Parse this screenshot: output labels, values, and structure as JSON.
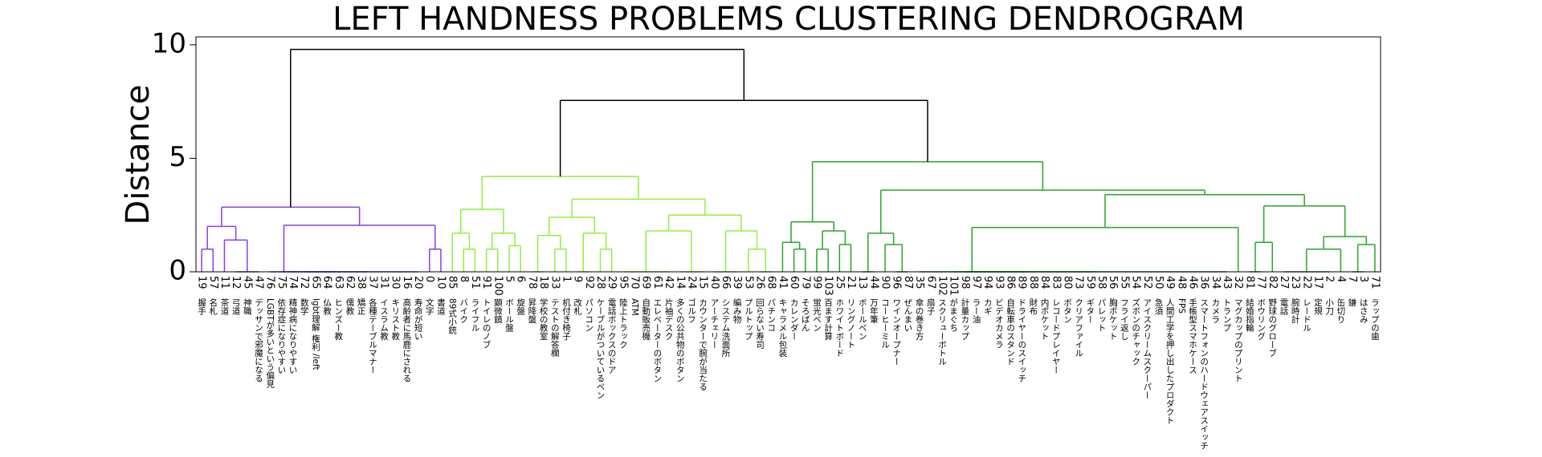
{
  "chart_data": {
    "type": "dendrogram",
    "title": "LEFT HANDNESS PROBLEMS CLUSTERING DENDROGRAM",
    "y_label": "Distance",
    "ylim": [
      0,
      10.35
    ],
    "yticks": [
      0,
      5,
      10
    ],
    "leaves": [
      {
        "id": 19,
        "label": "握手"
      },
      {
        "id": 57,
        "label": "名札"
      },
      {
        "id": 11,
        "label": "茶道"
      },
      {
        "id": 12,
        "label": "弓道"
      },
      {
        "id": 45,
        "label": "神職"
      },
      {
        "id": 47,
        "label": "デッサンで邪魔になる"
      },
      {
        "id": 76,
        "label": "LGBTが多いという偏見"
      },
      {
        "id": 75,
        "label": "依存症になりやすい"
      },
      {
        "id": 74,
        "label": "精神病になりやすい"
      },
      {
        "id": 72,
        "label": "数学"
      },
      {
        "id": 65,
        "label": "lgbt理解 権利 /left"
      },
      {
        "id": 64,
        "label": "仏教"
      },
      {
        "id": 63,
        "label": "ヒンズー教"
      },
      {
        "id": 62,
        "label": "儒教"
      },
      {
        "id": 38,
        "label": "矯正"
      },
      {
        "id": 37,
        "label": "各種テーブルマナー"
      },
      {
        "id": 31,
        "label": "イスラム教"
      },
      {
        "id": 30,
        "label": "キリスト教"
      },
      {
        "id": 16,
        "label": "高齢者に馬鹿にされる"
      },
      {
        "id": 20,
        "label": "寿命が短い"
      },
      {
        "id": 0,
        "label": "文字"
      },
      {
        "id": 10,
        "label": "書道"
      },
      {
        "id": 85,
        "label": "89式小銃"
      },
      {
        "id": 8,
        "label": "バイク"
      },
      {
        "id": 51,
        "label": "ライフル"
      },
      {
        "id": 91,
        "label": "トイレのノブ"
      },
      {
        "id": 100,
        "label": "顕微鏡"
      },
      {
        "id": 5,
        "label": "ボール盤"
      },
      {
        "id": 6,
        "label": "旋盤"
      },
      {
        "id": 78,
        "label": "昇降盤"
      },
      {
        "id": 18,
        "label": "学校の教室"
      },
      {
        "id": 33,
        "label": "テストの解答欄"
      },
      {
        "id": 1,
        "label": "机付き椅子"
      },
      {
        "id": 9,
        "label": "改札"
      },
      {
        "id": 92,
        "label": "パソコン"
      },
      {
        "id": 28,
        "label": "ケーブルがついているペン"
      },
      {
        "id": 29,
        "label": "電話ボックスのドア"
      },
      {
        "id": 95,
        "label": "陸上トラック"
      },
      {
        "id": 70,
        "label": "ATM"
      },
      {
        "id": 69,
        "label": "自動販売機"
      },
      {
        "id": 61,
        "label": "エレベーターのボタン"
      },
      {
        "id": 42,
        "label": "片袖デスク"
      },
      {
        "id": 14,
        "label": "多くの公共物のボタン"
      },
      {
        "id": 24,
        "label": "ゴルフ"
      },
      {
        "id": 15,
        "label": "カウンターで腕が当たる"
      },
      {
        "id": 40,
        "label": "アーチェリー"
      },
      {
        "id": 66,
        "label": "システム洗面所"
      },
      {
        "id": 39,
        "label": "編み物"
      },
      {
        "id": 53,
        "label": "プルトップ"
      },
      {
        "id": 26,
        "label": "回らない寿司"
      },
      {
        "id": 68,
        "label": "パチンコ"
      },
      {
        "id": 41,
        "label": "キャラメル包装"
      },
      {
        "id": 60,
        "label": "カレンダー"
      },
      {
        "id": 79,
        "label": "そろばん"
      },
      {
        "id": 99,
        "label": "蛍光ペン"
      },
      {
        "id": 103,
        "label": "百ます計算"
      },
      {
        "id": 25,
        "label": "ホワイトボード"
      },
      {
        "id": 21,
        "label": "リングノート"
      },
      {
        "id": 13,
        "label": "ボールペン"
      },
      {
        "id": 44,
        "label": "万年筆"
      },
      {
        "id": 90,
        "label": "コーヒーミル"
      },
      {
        "id": 96,
        "label": "ワインオープナー"
      },
      {
        "id": 87,
        "label": "ぜんまい"
      },
      {
        "id": 35,
        "label": "傘の巻き方"
      },
      {
        "id": 67,
        "label": "扇子"
      },
      {
        "id": 102,
        "label": "スクリューボトル"
      },
      {
        "id": 101,
        "label": "がまぐち"
      },
      {
        "id": 98,
        "label": "計量カップ"
      },
      {
        "id": 97,
        "label": "ラー油"
      },
      {
        "id": 94,
        "label": "カギ"
      },
      {
        "id": 93,
        "label": "ビデオカメラ"
      },
      {
        "id": 86,
        "label": "自転車のスタンド"
      },
      {
        "id": 89,
        "label": "ドライヤーのスイッチ"
      },
      {
        "id": 88,
        "label": "財布"
      },
      {
        "id": 84,
        "label": "内ポケット"
      },
      {
        "id": 83,
        "label": "レコードプレイヤー"
      },
      {
        "id": 80,
        "label": "ボタン"
      },
      {
        "id": 73,
        "label": "クリアファイル"
      },
      {
        "id": 59,
        "label": "ギター"
      },
      {
        "id": 58,
        "label": "パレット"
      },
      {
        "id": 56,
        "label": "胸ポケット"
      },
      {
        "id": 55,
        "label": "フライ返し"
      },
      {
        "id": 54,
        "label": "ズボンのチャック"
      },
      {
        "id": 52,
        "label": "アイスクリームスクーパー"
      },
      {
        "id": 50,
        "label": "急須"
      },
      {
        "id": 49,
        "label": "人間工学を押し出したプロダクト"
      },
      {
        "id": 48,
        "label": "FPS"
      },
      {
        "id": 46,
        "label": "手帳型スマホケース"
      },
      {
        "id": 36,
        "label": "スマートフォンのハードウェアスイッチ"
      },
      {
        "id": 34,
        "label": "カメラ"
      },
      {
        "id": 43,
        "label": "トランプ"
      },
      {
        "id": 32,
        "label": "マグカップのプリント"
      },
      {
        "id": 81,
        "label": "結婚指輪"
      },
      {
        "id": 77,
        "label": "ボウリング"
      },
      {
        "id": 82,
        "label": "野球のグローブ"
      },
      {
        "id": 27,
        "label": "電話"
      },
      {
        "id": 23,
        "label": "腕時計"
      },
      {
        "id": 22,
        "label": "レードル"
      },
      {
        "id": 17,
        "label": "定規"
      },
      {
        "id": 2,
        "label": "小刀"
      },
      {
        "id": 4,
        "label": "缶切り"
      },
      {
        "id": 7,
        "label": "鎌"
      },
      {
        "id": 3,
        "label": "はさみ"
      },
      {
        "id": 71,
        "label": "ラップの歯"
      }
    ],
    "tree": {
      "h": 9.8,
      "color": "#000000",
      "c": [
        {
          "h": 2.85,
          "color": "#8a3ee6",
          "c": [
            {
              "h": 2.0,
              "c": [
                {
                  "h": 1.0,
                  "c": [
                    0,
                    1
                  ]
                },
                {
                  "h": 1.4,
                  "c": [
                    2,
                    {
                      "h": 0,
                      "c": [
                        3,
                        4,
                        5
                      ]
                    }
                  ]
                }
              ]
            },
            {
              "h": 2.05,
              "c": [
                {
                  "h": 0,
                  "c": [
                    6,
                    {
                      "h": 0,
                      "c": [
                        7,
                        {
                          "h": 0,
                          "c": [
                            8,
                            {
                              "h": 0,
                              "c": [
                                9,
                                {
                                  "h": 0,
                                  "c": [
                                    10,
                                    11,
                                    12,
                                    13,
                                    14,
                                    15,
                                    16,
                                    17,
                                    18,
                                    19
                                  ]
                                }
                              ]
                            }
                          ]
                        }
                      ]
                    }
                  ]
                },
                {
                  "h": 1.0,
                  "c": [
                    20,
                    21
                  ]
                }
              ]
            }
          ]
        },
        {
          "h": 7.55,
          "c": [
            {
              "h": 4.2,
              "color": "#90f040",
              "c": [
                {
                  "h": 2.75,
                  "c": [
                    {
                      "h": 1.7,
                      "c": [
                        22,
                        {
                          "h": 1.0,
                          "c": [
                            23,
                            24
                          ]
                        }
                      ]
                    },
                    {
                      "h": 1.7,
                      "c": [
                        {
                          "h": 1.0,
                          "c": [
                            25,
                            26
                          ]
                        },
                        {
                          "h": 1.15,
                          "c": [
                            27,
                            28
                          ]
                        }
                      ]
                    }
                  ]
                },
                {
                  "h": 3.2,
                  "c": [
                    {
                      "h": 2.4,
                      "c": [
                        {
                          "h": 1.6,
                          "c": [
                            {
                              "h": 0,
                              "c": [
                                29,
                                30
                              ]
                            },
                            {
                              "h": 1.0,
                              "c": [
                                31,
                                32
                              ]
                            }
                          ]
                        },
                        {
                          "h": 1.7,
                          "c": [
                            {
                              "h": 0,
                              "c": [
                                33,
                                34
                              ]
                            },
                            {
                              "h": 1.0,
                              "c": [
                                35,
                                36
                              ]
                            }
                          ]
                        }
                      ]
                    },
                    {
                      "h": 2.5,
                      "c": [
                        {
                          "h": 1.8,
                          "c": [
                            {
                              "h": 0,
                              "c": [
                                37,
                                38,
                                39,
                                40,
                                41
                              ]
                            },
                            {
                              "h": 0,
                              "c": [
                                42,
                                43,
                                44
                              ]
                            }
                          ]
                        },
                        {
                          "h": 1.8,
                          "c": [
                            {
                              "h": 0,
                              "c": [
                                45,
                                46,
                                47
                              ]
                            },
                            {
                              "h": 1.0,
                              "c": [
                                48,
                                {
                                  "h": 0,
                                  "c": [
                                    49,
                                    50
                                  ]
                                }
                              ]
                            }
                          ]
                        }
                      ]
                    }
                  ]
                }
              ]
            },
            {
              "h": 4.85,
              "color": "#2aa52a",
              "c": [
                {
                  "h": 2.2,
                  "c": [
                    {
                      "h": 1.3,
                      "c": [
                        51,
                        {
                          "h": 1.0,
                          "c": [
                            52,
                            53
                          ]
                        }
                      ]
                    },
                    {
                      "h": 1.8,
                      "c": [
                        {
                          "h": 1.0,
                          "c": [
                            54,
                            55
                          ]
                        },
                        {
                          "h": 1.2,
                          "c": [
                            56,
                            57
                          ]
                        }
                      ]
                    }
                  ]
                },
                {
                  "h": 3.6,
                  "c": [
                    {
                      "h": 1.7,
                      "c": [
                        {
                          "h": 0,
                          "c": [
                            58,
                            59
                          ]
                        },
                        {
                          "h": 1.2,
                          "c": [
                            60,
                            {
                              "h": 0,
                              "c": [
                                61,
                                62
                              ]
                            }
                          ]
                        }
                      ]
                    },
                    {
                      "h": 3.4,
                      "c": [
                        {
                          "h": 1.95,
                          "c": [
                            {
                              "h": 0,
                              "c": [
                                63,
                                64,
                                65,
                                {
                                  "h": 0,
                                  "c": [
                                    66,
                                    {
                                      "h": 0,
                                      "c": [
                                        67,
                                        68,
                                        69,
                                        70,
                                        71,
                                        72,
                                        73,
                                        74,
                                        75,
                                        76,
                                        77,
                                        78,
                                        79,
                                        80,
                                        81,
                                        82,
                                        83,
                                        84,
                                        85,
                                        86,
                                        87,
                                        88,
                                        89,
                                        90
                                      ]
                                    }
                                  ]
                                }
                              ]
                            },
                            91
                          ]
                        },
                        {
                          "h": 2.9,
                          "c": [
                            {
                              "h": 1.3,
                              "c": [
                                {
                                  "h": 0,
                                  "c": [
                                    92,
                                    93
                                  ]
                                },
                                94
                              ]
                            },
                            {
                              "h": 1.55,
                              "c": [
                                {
                                  "h": 1.0,
                                  "c": [
                                    {
                                      "h": 0,
                                      "c": [
                                        95,
                                        96,
                                        97,
                                        98,
                                        99
                                      ]
                                    },
                                    100
                                  ]
                                },
                                {
                                  "h": 1.2,
                                  "c": [
                                    {
                                      "h": 0,
                                      "c": [
                                        101,
                                        102
                                      ]
                                    },
                                    103
                                  ]
                                }
                              ]
                            }
                          ]
                        }
                      ]
                    }
                  ]
                }
              ]
            }
          ]
        }
      ]
    }
  }
}
